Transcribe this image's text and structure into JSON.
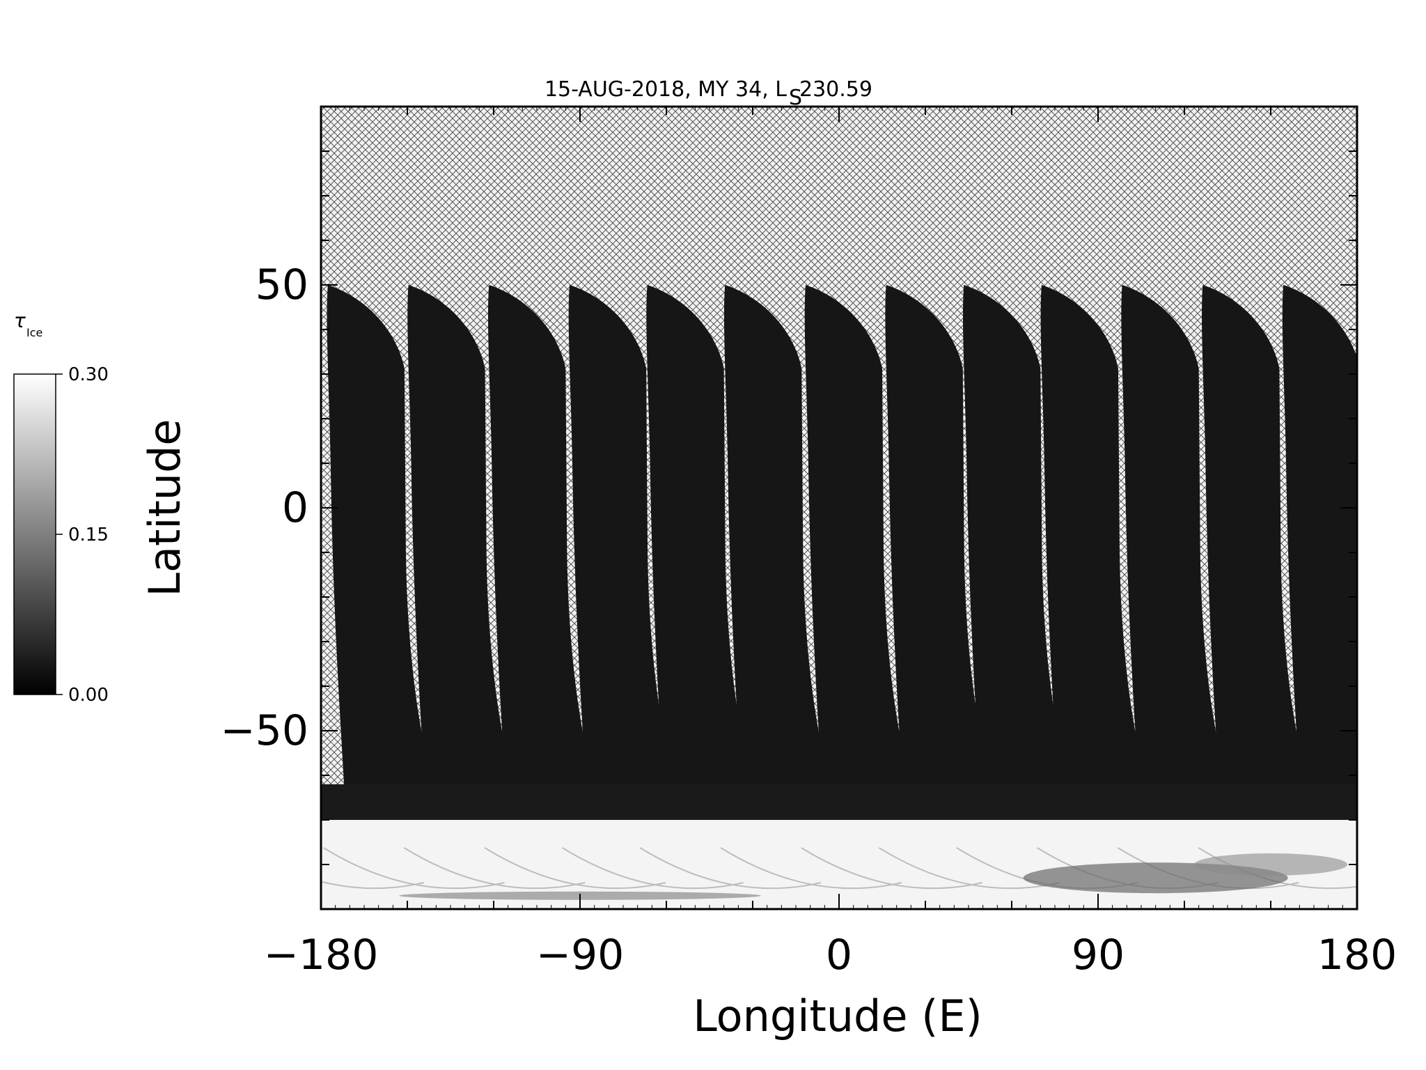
{
  "chart_data": {
    "type": "heatmap",
    "title": {
      "main": "15-AUG-2018, MY 34,  L",
      "sub": "S",
      "value": " 230.59"
    },
    "xlabel": "Longitude (E)",
    "ylabel": "Latitude",
    "xlim": [
      -180,
      180
    ],
    "ylim": [
      -90,
      90
    ],
    "xticks": [
      -180,
      -90,
      0,
      90,
      180
    ],
    "xtick_labels": [
      "−180",
      "−90",
      "0",
      "90",
      "180"
    ],
    "yticks": [
      50,
      0,
      -50
    ],
    "ytick_labels": [
      "50",
      "0",
      "−50"
    ],
    "hatch": "no data (cross-hatched)",
    "swath_centers_lon": [
      -166,
      -138,
      -110,
      -82,
      -55,
      -28,
      0,
      28,
      55,
      82,
      110,
      138,
      166
    ],
    "swath_coverage_lat": [
      -70,
      50
    ],
    "south_polar_ice_band_lat": [
      -90,
      -70
    ],
    "colorbar": {
      "label": "τ",
      "label_sub": "Ice",
      "min": 0.0,
      "max": 0.3,
      "tick_labels": [
        "0.30",
        "0.15",
        "0.00"
      ],
      "tick_values": [
        0.3,
        0.15,
        0.0
      ],
      "colormap": "grayscale",
      "color_low": "#000000",
      "color_high": "#ffffff"
    }
  }
}
